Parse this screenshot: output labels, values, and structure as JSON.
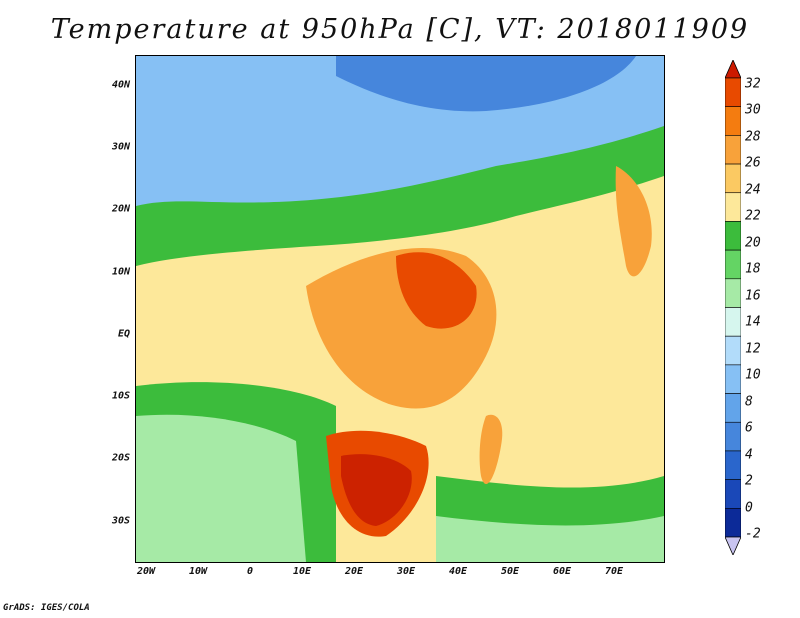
{
  "title": "Temperature at 950hPa [C], VT: 2018011909",
  "footer": "GrADS: IGES/COLA",
  "lat_labels": [
    "40N",
    "30N",
    "20N",
    "10N",
    "EQ",
    "10S",
    "20S",
    "30S"
  ],
  "lon_labels": [
    "20W",
    "10W",
    "0",
    "10E",
    "20E",
    "30E",
    "40E",
    "50E",
    "60E",
    "70E"
  ],
  "colorbar": {
    "labels": [
      "32",
      "30",
      "28",
      "26",
      "24",
      "22",
      "20",
      "18",
      "16",
      "14",
      "12",
      "10",
      "8",
      "6",
      "4",
      "2",
      "0",
      "-2"
    ],
    "colors": [
      "#cc2200",
      "#e84a00",
      "#f47c10",
      "#f8a23a",
      "#fbc962",
      "#fde89a",
      "#3cbc3c",
      "#64d464",
      "#a6eaa6",
      "#d6f6ee",
      "#b2dcfa",
      "#86c0f4",
      "#62a4ea",
      "#4686dc",
      "#2a66cc",
      "#1a48b8",
      "#0c2a98",
      "#081070"
    ],
    "top_arrow_color": "#cc1a00",
    "bottom_arrow_color": "#c8c4f0"
  }
}
